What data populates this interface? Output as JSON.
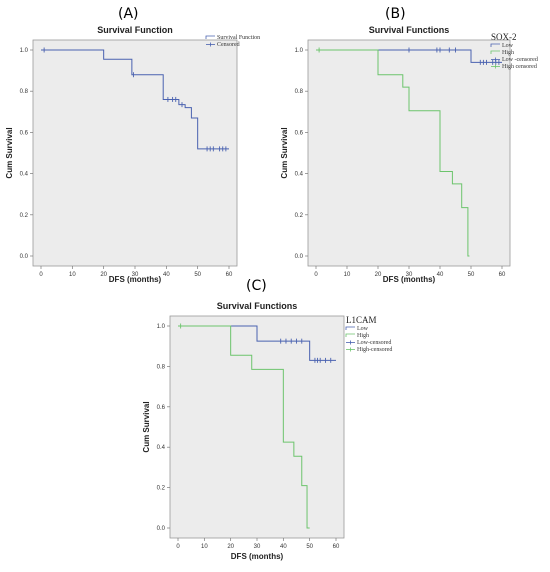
{
  "labels": {
    "a": "(A)",
    "b": "(B)",
    "c": "(C)"
  },
  "chart_data": [
    {
      "type": "line",
      "step": true,
      "title": "Survival Function",
      "xlabel": "DFS (months)",
      "ylabel": "Cum Survival",
      "xlim": [
        0,
        60
      ],
      "ylim": [
        0,
        1
      ],
      "xticks": [
        "0",
        "10",
        "20",
        "30",
        "40",
        "50",
        "60"
      ],
      "yticks": [
        "0.0",
        "0.2",
        "0.4",
        "0.6",
        "0.8",
        "1.0"
      ],
      "legend_title": "",
      "legend": [
        "Survival Function",
        "Censored"
      ],
      "series": [
        {
          "color": "#4a62b0",
          "x": [
            0,
            20,
            28,
            29,
            39,
            44,
            46,
            48,
            50,
            60
          ],
          "y": [
            1.0,
            0.955,
            0.955,
            0.88,
            0.76,
            0.735,
            0.72,
            0.67,
            0.52,
            0.52
          ],
          "censored_x": [
            1,
            29.5,
            40.5,
            42,
            43,
            45,
            53,
            54,
            55,
            57,
            58,
            59
          ]
        }
      ]
    },
    {
      "type": "line",
      "step": true,
      "title": "Survival Functions",
      "xlabel": "DFS (months)",
      "ylabel": "Cum Survival",
      "xlim": [
        0,
        60
      ],
      "ylim": [
        0,
        1
      ],
      "xticks": [
        "0",
        "10",
        "20",
        "30",
        "40",
        "50",
        "60"
      ],
      "yticks": [
        "0.0",
        "0.2",
        "0.4",
        "0.6",
        "0.8",
        "1.0"
      ],
      "legend_title": "SOX-2",
      "legend": [
        "Low",
        "High",
        "Low      -censored",
        "High     censored"
      ],
      "series": [
        {
          "name": "Low",
          "color": "#4a62b0",
          "x": [
            0,
            50,
            60
          ],
          "y": [
            1.0,
            0.94,
            0.94
          ],
          "censored_x": [
            30,
            39,
            40,
            43,
            45,
            53,
            54,
            55,
            57,
            58,
            59
          ]
        },
        {
          "name": "High",
          "color": "#6cc46c",
          "x": [
            0,
            20,
            28,
            30,
            40,
            44,
            47,
            49,
            49.5
          ],
          "y": [
            1.0,
            0.88,
            0.82,
            0.705,
            0.41,
            0.35,
            0.235,
            0.0,
            0.0
          ],
          "censored_x": [
            1
          ]
        }
      ]
    },
    {
      "type": "line",
      "step": true,
      "title": "Survival Functions",
      "xlabel": "DFS (months)",
      "ylabel": "Cum Survival",
      "xlim": [
        0,
        60
      ],
      "ylim": [
        0,
        1
      ],
      "xticks": [
        "0",
        "10",
        "20",
        "30",
        "40",
        "50",
        "60"
      ],
      "yticks": [
        "0.0",
        "0.2",
        "0.4",
        "0.6",
        "0.8",
        "1.0"
      ],
      "legend_title": "L1CAM",
      "legend": [
        "Low",
        "High",
        "Low-censored",
        "High-censored"
      ],
      "series": [
        {
          "name": "Low",
          "color": "#4a62b0",
          "x": [
            0,
            30,
            50,
            60
          ],
          "y": [
            1.0,
            0.925,
            0.83,
            0.83
          ],
          "censored_x": [
            39,
            41,
            43,
            45,
            47,
            52,
            53,
            54,
            56,
            58
          ]
        },
        {
          "name": "High",
          "color": "#6cc46c",
          "x": [
            0,
            20,
            28,
            40,
            44,
            47,
            49,
            50
          ],
          "y": [
            1.0,
            0.855,
            0.785,
            0.425,
            0.355,
            0.21,
            0.0,
            0.0
          ],
          "censored_x": [
            1
          ]
        }
      ]
    }
  ]
}
